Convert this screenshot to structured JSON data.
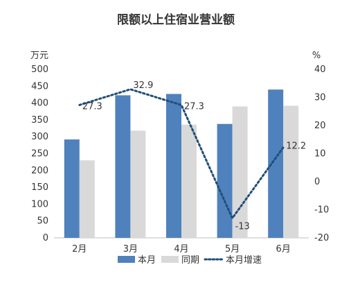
{
  "chart_data": {
    "type": "bar",
    "title": "限额以上住宿业营业额",
    "categories": [
      "2月",
      "3月",
      "4月",
      "5月",
      "6月"
    ],
    "y_left": {
      "unit_label": "万元",
      "range": [
        0,
        500
      ],
      "ticks": [
        "0",
        "50",
        "100",
        "150",
        "200",
        "250",
        "300",
        "350",
        "400",
        "450",
        "500"
      ]
    },
    "y_right": {
      "unit_label": "%",
      "range": [
        -20,
        40
      ],
      "ticks": [
        "-20",
        "-10",
        "0",
        "10",
        "20",
        "30",
        "40"
      ]
    },
    "series": [
      {
        "name": "本月",
        "kind": "bar",
        "axis": "left",
        "color": "#4F81BD",
        "values": [
          292,
          423,
          427,
          338,
          440
        ]
      },
      {
        "name": "同期",
        "kind": "bar",
        "axis": "left",
        "color": "#D9D9D9",
        "values": [
          230,
          318,
          336,
          390,
          392
        ]
      },
      {
        "name": "本月增速",
        "kind": "line",
        "axis": "right",
        "color": "#1F4E79",
        "style": "dotted",
        "values": [
          27.3,
          32.9,
          27.3,
          -13,
          12.2
        ],
        "labels": [
          "27.3",
          "32.9",
          "27.3",
          "-13",
          "12.2"
        ]
      }
    ],
    "legend": {
      "position": "bottom"
    },
    "grid": false
  }
}
